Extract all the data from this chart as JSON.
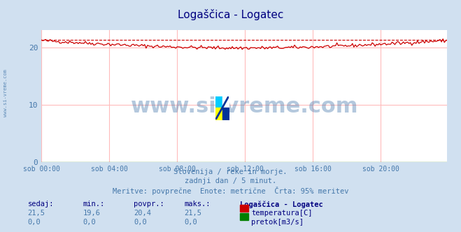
{
  "title": "Logaščica - Logatec",
  "title_color": "#000080",
  "bg_color": "#d0e0f0",
  "plot_bg_color": "#ffffff",
  "grid_color": "#ffbbbb",
  "xlabel_ticks": [
    "sob 00:00",
    "sob 04:00",
    "sob 08:00",
    "sob 12:00",
    "sob 16:00",
    "sob 20:00"
  ],
  "tick_positions": [
    0,
    48,
    96,
    144,
    192,
    240
  ],
  "ylabel_ticks": [
    0,
    10,
    20
  ],
  "ylim": [
    0,
    23
  ],
  "xlim": [
    0,
    287
  ],
  "temp_color": "#cc0000",
  "flow_color": "#008000",
  "dashed_color": "#cc0000",
  "watermark_color": "#4477aa",
  "watermark_text": "www.si-vreme.com",
  "subtitle1": "Slovenija / reke in morje.",
  "subtitle2": "zadnji dan / 5 minut.",
  "subtitle3": "Meritve: povprečne  Enote: metrične  Črta: 95% meritev",
  "subtitle_color": "#4477aa",
  "table_header": [
    "sedaj:",
    "min.:",
    "povpr.:",
    "maks.:",
    "Logaščica - Logatec"
  ],
  "table_row1": [
    "21,5",
    "19,6",
    "20,4",
    "21,5",
    "temperatura[C]"
  ],
  "table_row2": [
    "0,0",
    "0,0",
    "0,0",
    "0,0",
    "pretok[m3/s]"
  ],
  "table_color": "#000080",
  "table_value_color": "#4477aa",
  "side_label": "www.si-vreme.com",
  "temp_min": 19.6,
  "temp_max": 21.5,
  "temp_avg": 20.4,
  "dashed_level": 21.35,
  "logo_colors": [
    "#ffff00",
    "#00ccff",
    "#ffffff",
    "#0033aa"
  ]
}
